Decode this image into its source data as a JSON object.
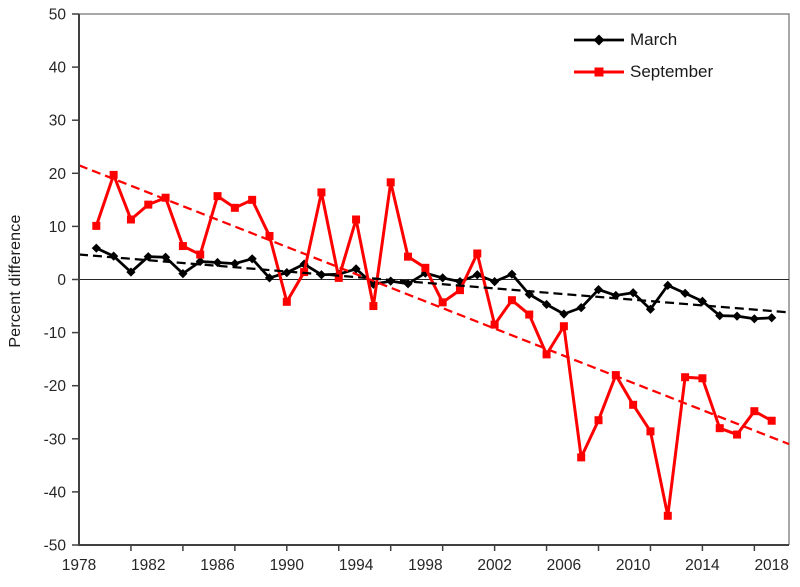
{
  "window": {
    "title": "Sea ice extent percent difference chart"
  },
  "chart_data": {
    "type": "line",
    "title": "",
    "xlabel": "",
    "ylabel": "Percent difference",
    "xlim": [
      1978,
      2019
    ],
    "ylim": [
      -50,
      50
    ],
    "grid": false,
    "zero_line": true,
    "legend_position": "top-right-inside",
    "x_tick_labels": [
      "1978",
      "1982",
      "1986",
      "1990",
      "1994",
      "1998",
      "2002",
      "2006",
      "2010",
      "2014",
      "2018"
    ],
    "x_tick_label_years": [
      1978,
      1982,
      1986,
      1990,
      1994,
      1998,
      2002,
      2006,
      2010,
      2014,
      2018
    ],
    "x_tick_mark_years": [
      1981,
      1984,
      1987,
      1990,
      1993,
      1996,
      1999,
      2002,
      2005,
      2008,
      2011,
      2014,
      2017
    ],
    "y_tick_values": [
      50,
      40,
      30,
      20,
      10,
      0,
      -10,
      -20,
      -30,
      -40,
      -50
    ],
    "x": [
      1979,
      1980,
      1981,
      1982,
      1983,
      1984,
      1985,
      1986,
      1987,
      1988,
      1989,
      1990,
      1991,
      1992,
      1993,
      1994,
      1995,
      1996,
      1997,
      1998,
      1999,
      2000,
      2001,
      2002,
      2003,
      2004,
      2005,
      2006,
      2007,
      2008,
      2009,
      2010,
      2011,
      2012,
      2013,
      2014,
      2015,
      2016,
      2017,
      2018
    ],
    "series": [
      {
        "name": "March",
        "color": "#000000",
        "marker": "diamond",
        "line_width": 2.75,
        "values": [
          5.9,
          4.4,
          1.4,
          4.3,
          4.2,
          1.1,
          3.4,
          3.2,
          3.0,
          3.9,
          0.3,
          1.3,
          2.9,
          0.9,
          1.0,
          2.0,
          -0.9,
          -0.3,
          -0.8,
          1.2,
          0.3,
          -0.4,
          0.9,
          -0.4,
          1.0,
          -2.8,
          -4.7,
          -6.5,
          -5.3,
          -1.9,
          -3.0,
          -2.5,
          -5.6,
          -1.1,
          -2.6,
          -4.1,
          -6.8,
          -6.9,
          -7.4,
          -7.2
        ]
      },
      {
        "name": "September",
        "color": "#ff0000",
        "marker": "square",
        "line_width": 3,
        "values": [
          10.1,
          19.7,
          11.3,
          14.1,
          15.4,
          6.3,
          4.7,
          15.7,
          13.5,
          15.0,
          8.2,
          -4.2,
          1.4,
          16.4,
          0.3,
          11.3,
          -5.0,
          18.3,
          4.3,
          2.2,
          -4.3,
          -2.0,
          4.9,
          -8.5,
          -3.9,
          -6.6,
          -14.1,
          -8.8,
          -33.5,
          -26.5,
          -18.0,
          -23.6,
          -28.6,
          -44.5,
          -18.4,
          -18.6,
          -28.0,
          -29.2,
          -24.8,
          -26.6
        ]
      }
    ],
    "trendlines": [
      {
        "series": "March",
        "color": "#000000",
        "style": "dashed",
        "x_start": 1978,
        "y_start": 4.7,
        "x_end": 2019,
        "y_end": -6.2
      },
      {
        "series": "September",
        "color": "#ff0000",
        "style": "dashed",
        "x_start": 1978,
        "y_start": 21.5,
        "x_end": 2019,
        "y_end": -31.0
      }
    ],
    "legend": {
      "entries": [
        {
          "label": "March",
          "color": "#000000",
          "marker": "diamond"
        },
        {
          "label": "September",
          "color": "#ff0000",
          "marker": "square"
        }
      ]
    }
  },
  "axis_colors": {
    "axis_line": "#404040",
    "plot_border": "#8c8c8c",
    "zero_line": "#262626",
    "tick_label": "#262626"
  }
}
